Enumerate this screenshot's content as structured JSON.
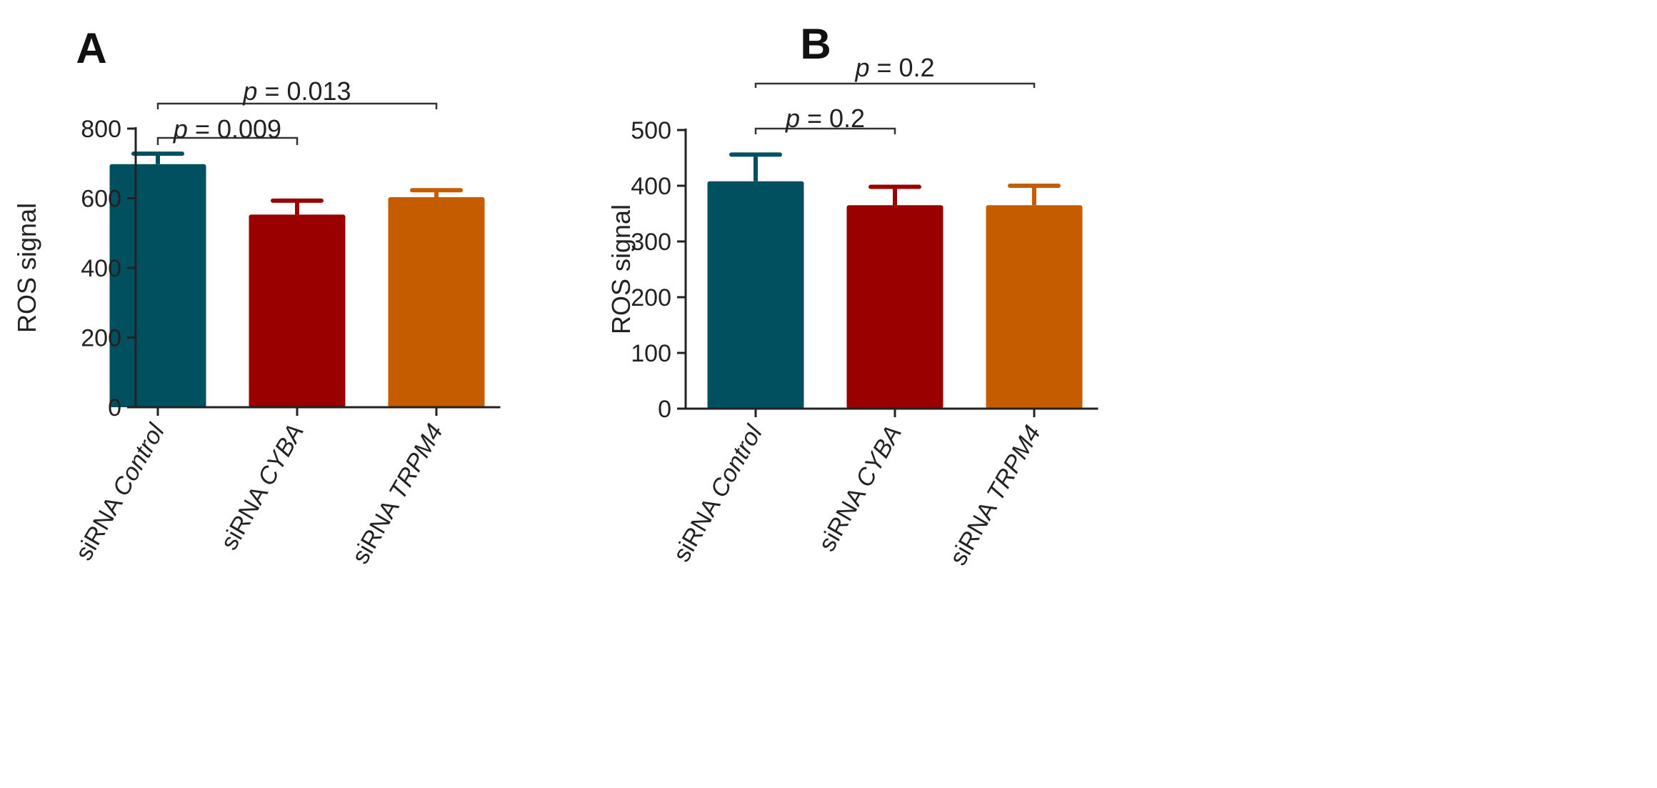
{
  "colors": {
    "control": "#005060",
    "cyba": "#9b0000",
    "trpm4": "#c55d00",
    "axis": "#222222"
  },
  "chart_data": [
    {
      "panel": "A",
      "type": "bar",
      "ylabel": "ROS signal",
      "ylim": [
        0,
        800
      ],
      "yticks": [
        0,
        200,
        400,
        600,
        800
      ],
      "categories": [
        {
          "prefix": "siRNA ",
          "gene": "Control"
        },
        {
          "prefix": "siRNA ",
          "gene": "CYBA"
        },
        {
          "prefix": "siRNA ",
          "gene": "TRPM4"
        }
      ],
      "values": [
        698,
        553,
        603
      ],
      "errors": [
        30,
        40,
        20
      ],
      "significance": [
        {
          "from": 0,
          "to": 1,
          "p_prefix": "p",
          "p_text": " = 0.009"
        },
        {
          "from": 0,
          "to": 2,
          "p_prefix": "p",
          "p_text": " = 0.013"
        }
      ]
    },
    {
      "panel": "B",
      "type": "bar",
      "ylabel": "ROS signal",
      "ylim": [
        0,
        500
      ],
      "yticks": [
        0,
        100,
        200,
        300,
        400,
        500
      ],
      "categories": [
        {
          "prefix": "siRNA ",
          "gene": "Control"
        },
        {
          "prefix": "siRNA ",
          "gene": "CYBA"
        },
        {
          "prefix": "siRNA ",
          "gene": "TRPM4"
        }
      ],
      "values": [
        408,
        365,
        365
      ],
      "errors": [
        48,
        33,
        35
      ],
      "significance": [
        {
          "from": 0,
          "to": 1,
          "p_prefix": "p",
          "p_text": " = 0.2"
        },
        {
          "from": 0,
          "to": 2,
          "p_prefix": "p",
          "p_text": " = 0.2"
        }
      ]
    }
  ]
}
